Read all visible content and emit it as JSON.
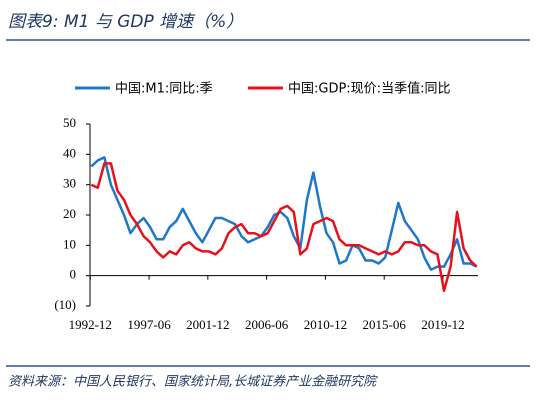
{
  "chart_data": {
    "type": "line",
    "title": "图表9: M1 与 GDP 增速（%）",
    "source": "资料来源：中国人民银行、国家统计局,长城证券产业金融研究院",
    "x": [
      1993,
      1993.5,
      1994,
      1994.5,
      1995,
      1995.5,
      1996,
      1996.5,
      1997,
      1997.5,
      1998,
      1998.5,
      1999,
      1999.5,
      2000,
      2000.5,
      2001,
      2001.5,
      2002,
      2002.5,
      2003,
      2003.5,
      2004,
      2004.5,
      2005,
      2005.5,
      2006,
      2006.5,
      2007,
      2007.5,
      2008,
      2008.5,
      2009,
      2009.5,
      2010,
      2010.5,
      2011,
      2011.5,
      2012,
      2012.5,
      2013,
      2013.5,
      2014,
      2014.5,
      2015,
      2015.5,
      2016,
      2016.5,
      2017,
      2017.5,
      2018,
      2018.5,
      2019,
      2019.5,
      2020,
      2020.5,
      2021,
      2021.5,
      2022,
      2022.5
    ],
    "series": [
      {
        "name": "中国:M1:同比:季",
        "color": "#1f77c8",
        "values": [
          36,
          38,
          39,
          30,
          25,
          20,
          14,
          17,
          19,
          16,
          12,
          12,
          16,
          18,
          22,
          18,
          14,
          11,
          15,
          19,
          19,
          18,
          17,
          13,
          11,
          12,
          13,
          16,
          20,
          21,
          19,
          13,
          9,
          25,
          34,
          23,
          14,
          11,
          4,
          5,
          10,
          9,
          5,
          5,
          4,
          6,
          15,
          24,
          18,
          15,
          12,
          6,
          2,
          3,
          3,
          7,
          12,
          4,
          4,
          3
        ]
      },
      {
        "name": "中国:GDP:现价:当季值:同比",
        "color": "#e8101a",
        "values": [
          30,
          29,
          37,
          37,
          28,
          25,
          20,
          17,
          13,
          11,
          8,
          6,
          8,
          7,
          10,
          11,
          9,
          8,
          8,
          7,
          9,
          14,
          16,
          17,
          14,
          14,
          13,
          14,
          18,
          22,
          23,
          21,
          7,
          9,
          17,
          18,
          19,
          18,
          12,
          10,
          10,
          10,
          9,
          8,
          7,
          8,
          7,
          8,
          11,
          11,
          10,
          10,
          8,
          7,
          -5,
          3,
          21,
          9,
          5,
          3
        ]
      }
    ],
    "xlim": [
      1992.9,
      2022.6
    ],
    "xticks": [
      {
        "value": 1992.92,
        "label": "1992-12"
      },
      {
        "value": 1997.42,
        "label": "1997-06"
      },
      {
        "value": 2001.92,
        "label": "2001-12"
      },
      {
        "value": 2006.42,
        "label": "2006-06"
      },
      {
        "value": 2010.92,
        "label": "2010-12"
      },
      {
        "value": 2015.42,
        "label": "2015-06"
      },
      {
        "value": 2019.92,
        "label": "2019-12"
      }
    ],
    "ylim": [
      -10,
      50
    ],
    "yticks": [
      {
        "value": -10,
        "label": "(10)"
      },
      0,
      10,
      20,
      30,
      40,
      50
    ],
    "negative_tick_color": "#c00000"
  }
}
